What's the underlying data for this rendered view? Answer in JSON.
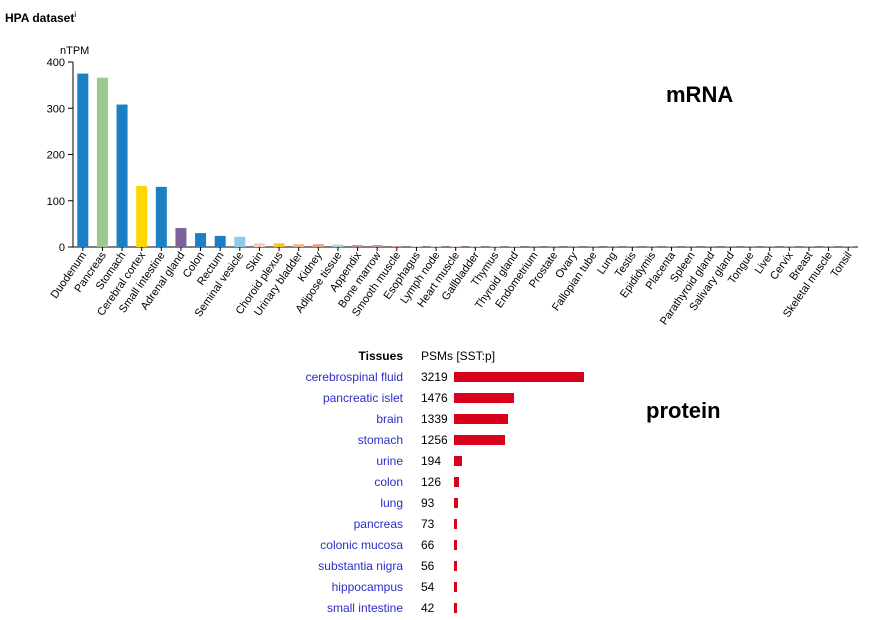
{
  "header": {
    "title": "HPA dataset",
    "info_mark": "i"
  },
  "labels": {
    "mrna": "mRNA",
    "protein": "protein"
  },
  "chart_data": [
    {
      "type": "bar",
      "title": "",
      "ylabel": "nTPM",
      "xlabel": "",
      "ylim": [
        0,
        400
      ],
      "yticks": [
        0,
        100,
        200,
        300,
        400
      ],
      "grid": false,
      "categories": [
        "Duodenum",
        "Pancreas",
        "Stomach",
        "Cerebral cortex",
        "Small intestine",
        "Adrenal gland",
        "Colon",
        "Rectum",
        "Seminal vesicle",
        "Skin",
        "Choroid plexus",
        "Urinary bladder",
        "Kidney",
        "Adipose tissue",
        "Appendix",
        "Bone marrow",
        "Smooth muscle",
        "Esophagus",
        "Lymph node",
        "Heart muscle",
        "Gallbladder",
        "Thymus",
        "Thyroid gland",
        "Endometrium",
        "Prostate",
        "Ovary",
        "Fallopian tube",
        "Lung",
        "Testis",
        "Epididymis",
        "Placenta",
        "Spleen",
        "Parathyroid gland",
        "Salivary gland",
        "Tongue",
        "Liver",
        "Cervix",
        "Breast",
        "Skeletal muscle",
        "Tonsil"
      ],
      "values": [
        375,
        366,
        308,
        132,
        130,
        41,
        30,
        24,
        22,
        8,
        8,
        6,
        6,
        5,
        4,
        4,
        2,
        1,
        1,
        1,
        1,
        1,
        1,
        0.5,
        0.5,
        0.5,
        0.5,
        0.5,
        0.5,
        0.5,
        0.5,
        0.5,
        0.5,
        0.5,
        0.5,
        0.5,
        0.5,
        0.5,
        0.5,
        0.5
      ],
      "colors": [
        "#1a7fc4",
        "#9dc88f",
        "#1a7fc4",
        "#ffd700",
        "#1a7fc4",
        "#7d6199",
        "#1a7fc4",
        "#1a7fc4",
        "#8ecbe8",
        "#f5cdbf",
        "#f2c629",
        "#f2b57f",
        "#e8a07a",
        "#a8d5c6",
        "#cc8686",
        "#c88a8a",
        "#d98c7a",
        "#e0b0a0",
        "#c9a0c9",
        "#e0a0a0",
        "#c0c0c0",
        "#d0a0c0",
        "#d0b0b0",
        "#e0c0d0",
        "#c0c0d0",
        "#e0d0c0",
        "#d0d0d0",
        "#c0d0e0",
        "#d0d0d0",
        "#d0d0d0",
        "#e0d0d0",
        "#c0c0e0",
        "#d0d0c0",
        "#d0c0d0",
        "#e0c0c0",
        "#d0e0d0",
        "#e0d0e0",
        "#e0e0d0",
        "#d0d0e0",
        "#d0d0d0"
      ]
    },
    {
      "type": "bar",
      "title": "",
      "xlabel": "",
      "ylabel": "",
      "column_headers": {
        "tissues": "Tissues",
        "psms": "PSMs [SST:p]"
      },
      "categories": [
        "cerebrospinal fluid",
        "pancreatic islet",
        "brain",
        "stomach",
        "urine",
        "colon",
        "lung",
        "pancreas",
        "colonic mucosa",
        "substantia nigra",
        "hippocampus",
        "small intestine"
      ],
      "values": [
        3219,
        1476,
        1339,
        1256,
        194,
        126,
        93,
        73,
        66,
        56,
        54,
        42
      ],
      "bar_color": "#d9001b",
      "link_color": "#2d2dc8"
    }
  ]
}
